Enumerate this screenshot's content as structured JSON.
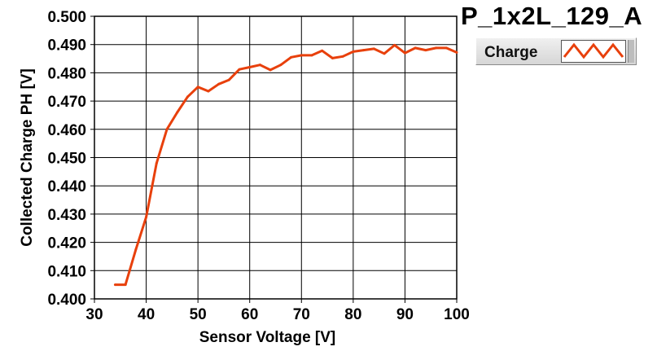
{
  "title": "P_1x2L_129_A",
  "legend": {
    "label": "Charge",
    "icon": "zigzag-line-swatch-icon"
  },
  "colors": {
    "series": "#e8400c",
    "grid": "#000000",
    "background": "#ffffff"
  },
  "chart_data": {
    "type": "line",
    "xlabel": "Sensor Voltage [V]",
    "ylabel": "Collected Charge PH [V]",
    "xlim": [
      30,
      100
    ],
    "ylim": [
      0.4,
      0.5
    ],
    "grid": true,
    "legend_position": "top-right",
    "xticks": [
      "30",
      "40",
      "50",
      "60",
      "70",
      "80",
      "90",
      "100"
    ],
    "yticks": [
      "0.400",
      "0.410",
      "0.420",
      "0.430",
      "0.440",
      "0.450",
      "0.460",
      "0.470",
      "0.480",
      "0.490",
      "0.500"
    ],
    "series": [
      {
        "name": "Charge",
        "x": [
          34,
          36,
          38,
          40,
          42,
          44,
          46,
          48,
          50,
          52,
          54,
          56,
          58,
          60,
          62,
          64,
          66,
          68,
          70,
          72,
          74,
          76,
          78,
          80,
          82,
          84,
          86,
          88,
          90,
          92,
          94,
          96,
          98,
          100
        ],
        "y": [
          0.405,
          0.405,
          0.4175,
          0.429,
          0.448,
          0.46,
          0.466,
          0.4715,
          0.475,
          0.4735,
          0.476,
          0.4775,
          0.4812,
          0.482,
          0.4828,
          0.481,
          0.4828,
          0.4855,
          0.4862,
          0.4862,
          0.4878,
          0.4852,
          0.4858,
          0.4875,
          0.488,
          0.4885,
          0.4868,
          0.4898,
          0.487,
          0.4888,
          0.488,
          0.4888,
          0.4888,
          0.4872
        ]
      }
    ]
  }
}
